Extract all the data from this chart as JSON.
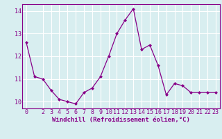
{
  "x": [
    0,
    1,
    2,
    3,
    4,
    5,
    6,
    7,
    8,
    9,
    10,
    11,
    12,
    13,
    14,
    15,
    16,
    17,
    18,
    19,
    20,
    21,
    22,
    23
  ],
  "y": [
    12.6,
    11.1,
    11.0,
    10.5,
    10.1,
    10.0,
    9.9,
    10.4,
    10.6,
    11.1,
    12.0,
    13.0,
    13.6,
    14.1,
    12.3,
    12.5,
    11.6,
    10.3,
    10.8,
    10.7,
    10.4,
    10.4,
    10.4,
    10.4
  ],
  "xlabel": "Windchill (Refroidissement éolien,°C)",
  "ylim": [
    9.7,
    14.3
  ],
  "yticks": [
    10,
    11,
    12,
    13,
    14
  ],
  "xticks": [
    0,
    2,
    3,
    4,
    5,
    6,
    7,
    8,
    9,
    10,
    11,
    12,
    13,
    14,
    15,
    16,
    17,
    18,
    19,
    20,
    21,
    22,
    23
  ],
  "line_color": "#880088",
  "marker": "D",
  "marker_size": 2.0,
  "bg_color": "#d8eef0",
  "grid_color": "#ffffff",
  "xlabel_fontsize": 6.5,
  "tick_fontsize": 6.0
}
